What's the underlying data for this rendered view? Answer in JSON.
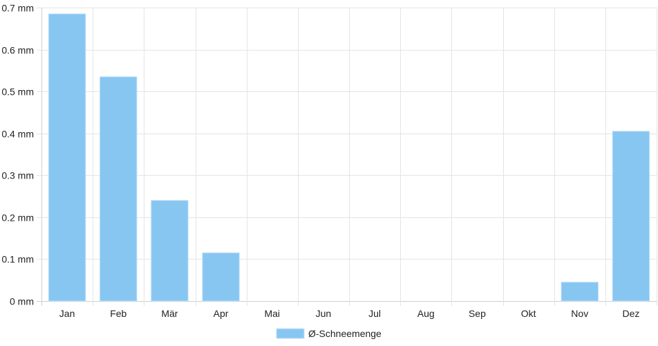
{
  "chart_data": {
    "type": "bar",
    "categories": [
      "Jan",
      "Feb",
      "Mär",
      "Apr",
      "Mai",
      "Jun",
      "Jul",
      "Aug",
      "Sep",
      "Okt",
      "Nov",
      "Dez"
    ],
    "series": [
      {
        "name": "Ø-Schneemenge",
        "values": [
          0.685,
          0.535,
          0.24,
          0.115,
          0,
          0,
          0,
          0,
          0,
          0,
          0.045,
          0.405
        ]
      }
    ],
    "ylim": [
      0,
      0.7
    ],
    "yticks": [
      0,
      0.1,
      0.2,
      0.3,
      0.4,
      0.5,
      0.6,
      0.7
    ],
    "yunit": "mm",
    "grid": true,
    "legend_position": "bottom-center",
    "colors": {
      "bar": "#88c6f2",
      "bar_border": "#bfe0f8",
      "grid": "#e4e4e4",
      "axis": "#cfcfcf"
    }
  },
  "legend": {
    "label": "Ø-Schneemenge"
  }
}
